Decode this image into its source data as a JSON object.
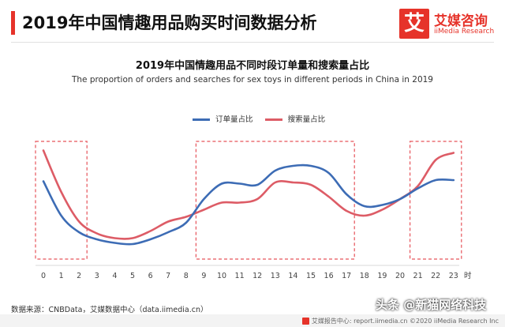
{
  "header": {
    "title": "2019年中国情趣用品购买时间数据分析",
    "logo_mark": "艾",
    "logo_name": "艾媒咨询",
    "logo_sub": "iiMedia Research"
  },
  "chart_data": {
    "type": "line",
    "title": "2019年中国情趣用品不同时段订单量和搜索量占比",
    "subtitle": "The proportion of orders and searches for sex toys in different periods in China in 2019",
    "x": [
      0,
      1,
      2,
      3,
      4,
      5,
      6,
      7,
      8,
      9,
      10,
      11,
      12,
      13,
      14,
      15,
      16,
      17,
      18,
      19,
      20,
      21,
      22,
      23
    ],
    "x_unit": "时",
    "series": [
      {
        "name": "订单量占比",
        "color": "#3d6cb5",
        "values": [
          67,
          38,
          24,
          18,
          15,
          14,
          18,
          24,
          32,
          52,
          65,
          65,
          64,
          76,
          80,
          80,
          74,
          56,
          46,
          47,
          52,
          61,
          68,
          68
        ]
      },
      {
        "name": "搜索量占比",
        "color": "#dd5c66",
        "values": [
          93,
          58,
          33,
          23,
          19,
          19,
          25,
          33,
          37,
          43,
          49,
          49,
          52,
          66,
          66,
          64,
          54,
          42,
          38,
          43,
          52,
          63,
          85,
          91
        ]
      }
    ],
    "highlight_ranges": [
      [
        0,
        2
      ],
      [
        9,
        17
      ],
      [
        21,
        23
      ]
    ],
    "ylim": [
      0,
      100
    ],
    "grid": false,
    "legend_position": "top-center"
  },
  "footer": {
    "source": "数据来源：CNBData，艾媒数据中心（data.iimedia.cn）",
    "watermark": "头条 @新猫网络科技",
    "copyright": "艾媒报告中心: report.iimedia.cn  ©2020  iiMedia Research  Inc"
  }
}
